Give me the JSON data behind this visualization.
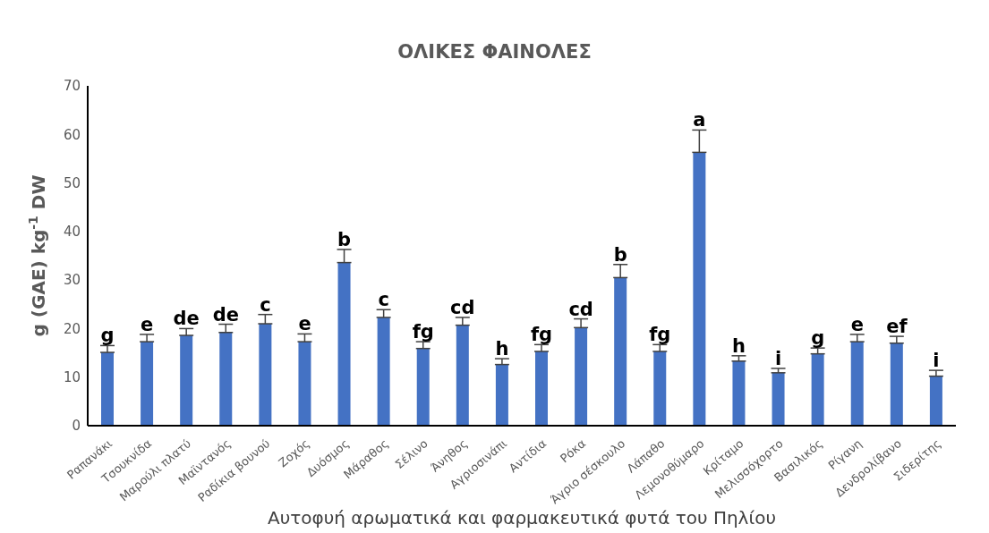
{
  "chart_data": {
    "type": "bar",
    "title": "ΟΛΙΚΕΣ ΦΑΙΝΟΛΕΣ",
    "xlabel": "Αυτοφυή αρωματικά και φαρμακευτικά φυτά του Πηλίου",
    "ylabel": "g (GAE) kg$^{-1}$ DW",
    "categories": [
      "Ραπανάκι",
      "Τσουκνίδα",
      "Μαρούλι πλατύ",
      "Μαϊντανός",
      "Ραδίκια βουνού",
      "Ζοχός",
      "Δυόσμος",
      "Μάραθος",
      "Σέλινο",
      "Άνηθος",
      "Αγριοσινάπι",
      "Αντίδια",
      "Ρόκα",
      "Άγριο σέσκουλο",
      "Λάπαθο",
      "Λεμονοθύμαρο",
      "Κρίταμο",
      "Μελισσόχορτο",
      "Βασιλικός",
      "Ρίγανη",
      "Δενδρολίβανο",
      "Σιδερίτης"
    ],
    "values": [
      15.1,
      17.3,
      18.6,
      19.2,
      21.0,
      17.3,
      33.6,
      22.3,
      15.9,
      20.7,
      12.6,
      15.3,
      20.2,
      30.5,
      15.3,
      56.3,
      13.3,
      10.9,
      14.8,
      17.3,
      17.0,
      10.2
    ],
    "errors": [
      [
        15.1,
        16.5
      ],
      [
        17.3,
        18.8
      ],
      [
        18.6,
        20.0
      ],
      [
        19.2,
        20.9
      ],
      [
        21.0,
        22.9
      ],
      [
        17.3,
        18.9
      ],
      [
        33.6,
        36.3
      ],
      [
        22.3,
        23.9
      ],
      [
        15.9,
        17.3
      ],
      [
        20.7,
        22.3
      ],
      [
        12.6,
        13.8
      ],
      [
        15.3,
        16.7
      ],
      [
        20.2,
        22.0
      ],
      [
        30.5,
        33.2
      ],
      [
        15.3,
        16.7
      ],
      [
        56.3,
        60.9
      ],
      [
        13.3,
        14.4
      ],
      [
        10.9,
        11.8
      ],
      [
        14.8,
        16.0
      ],
      [
        17.3,
        18.8
      ],
      [
        17.0,
        18.4
      ],
      [
        10.2,
        11.4
      ]
    ],
    "color": "#4472c4",
    "ylim": [
      0,
      70
    ],
    "yticks": [
      0,
      10,
      20,
      30,
      40,
      50,
      60,
      70
    ],
    "grid": false,
    "annotations": [
      {
        "text": "g",
        "x": "Ραπανάκι",
        "y": 16.5
      },
      {
        "text": "e",
        "x": "Τσουκνίδα",
        "y": 18.8
      },
      {
        "text": "de",
        "x": "Μαρούλι πλατύ",
        "y": 20.0
      },
      {
        "text": "de",
        "x": "Μαϊντανός",
        "y": 20.9
      },
      {
        "text": "c",
        "x": "Ραδίκια βουνού",
        "y": 22.9
      },
      {
        "text": "e",
        "x": "Ζοχός",
        "y": 18.9
      },
      {
        "text": "b",
        "x": "Δυόσμος",
        "y": 36.3
      },
      {
        "text": "c",
        "x": "Μάραθος",
        "y": 23.9
      },
      {
        "text": "fg",
        "x": "Σέλινο",
        "y": 17.3
      },
      {
        "text": "cd",
        "x": "Άνηθος",
        "y": 22.3
      },
      {
        "text": "h",
        "x": "Αγριοσινάπι",
        "y": 13.8
      },
      {
        "text": "fg",
        "x": "Αντίδια",
        "y": 16.7
      },
      {
        "text": "cd",
        "x": "Ρόκα",
        "y": 22.0
      },
      {
        "text": "b",
        "x": "Άγριο σέσκουλο",
        "y": 33.2
      },
      {
        "text": "fg",
        "x": "Λάπαθο",
        "y": 16.7
      },
      {
        "text": "a",
        "x": "Λεμονοθύμαρο",
        "y": 60.9
      },
      {
        "text": "h",
        "x": "Κρίταμο",
        "y": 14.4
      },
      {
        "text": "i",
        "x": "Μελισσόχορτο",
        "y": 11.8
      },
      {
        "text": "g",
        "x": "Βασιλικός",
        "y": 16.0
      },
      {
        "text": "e",
        "x": "Ρίγανη",
        "y": 18.8
      },
      {
        "text": "ef",
        "x": "Δενδρολίβανο",
        "y": 18.4
      },
      {
        "text": "i",
        "x": "Σιδερίτης",
        "y": 11.4
      }
    ]
  }
}
